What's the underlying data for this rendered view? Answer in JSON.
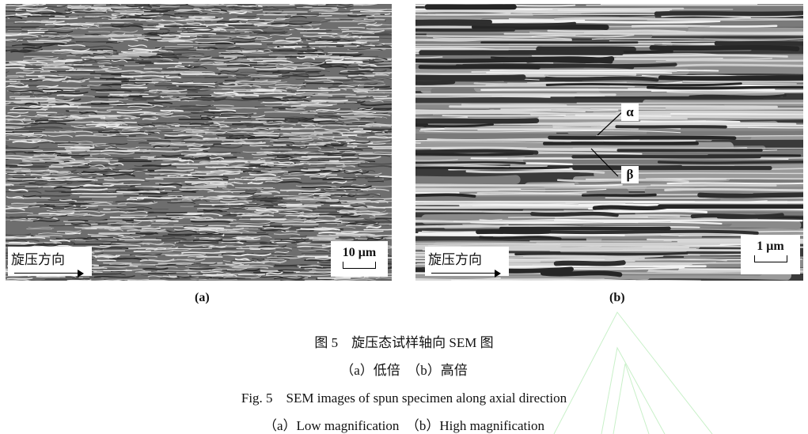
{
  "figure": {
    "panels": [
      {
        "label": "(a)",
        "direction_label": "旋压方向",
        "scale_bar": "10 μm"
      },
      {
        "label": "(b)",
        "direction_label": "旋压方向",
        "scale_bar": "1 μm",
        "phase_labels": [
          "α",
          "β"
        ]
      }
    ],
    "caption_cn": "图 5　旋压态试样轴向 SEM 图",
    "subcaption_cn": "（a）低倍　（b）高倍",
    "caption_en": "Fig. 5　SEM images of spun specimen along axial direction",
    "subcaption_en": "（a）Low magnification　（b）High magnification"
  }
}
